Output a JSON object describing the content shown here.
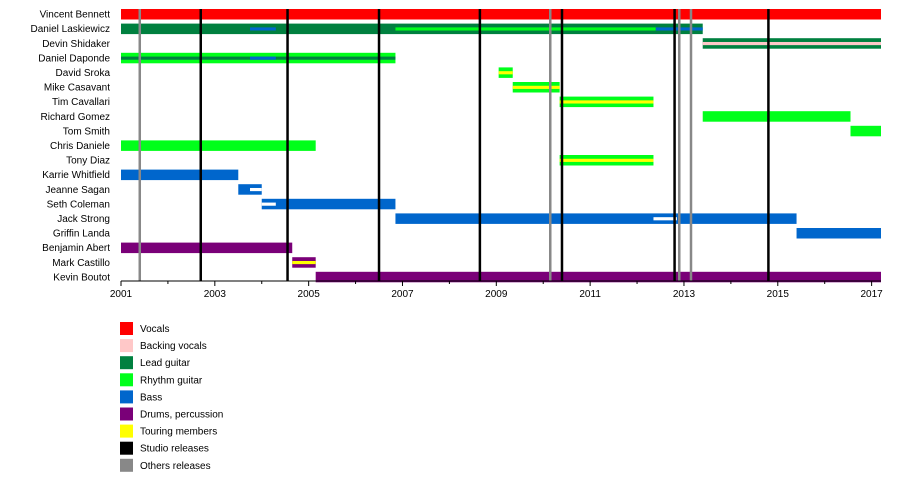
{
  "chart_data": {
    "type": "timeline",
    "title": "",
    "xlabel": "",
    "ylabel": "",
    "xlim": [
      2001,
      2017.2
    ],
    "x_ticks": [
      "2001",
      "2003",
      "2005",
      "2007",
      "2009",
      "2011",
      "2013",
      "2015",
      "2017"
    ],
    "grid": false,
    "legend_position": "bottom-left",
    "colors": {
      "Vocals": "#ff0000",
      "Backing vocals": "#ffc8c8",
      "Lead guitar": "#00803f",
      "Rhythm guitar": "#00ff1a",
      "Bass": "#0066cc",
      "Drums, percussion": "#7a0078",
      "Touring members": "#ffff00",
      "Studio releases": "#000000",
      "Others releases": "#888888"
    },
    "legend": [
      "Vocals",
      "Backing vocals",
      "Lead guitar",
      "Rhythm guitar",
      "Bass",
      "Drums, percussion",
      "Touring members",
      "Studio releases",
      "Others releases"
    ],
    "members": [
      "Vincent Bennett",
      "Daniel Laskiewicz",
      "Devin Shidaker",
      "Daniel Daponde",
      "David Sroka",
      "Mike Casavant",
      "Tim Cavallari",
      "Richard Gomez",
      "Tom Smith",
      "Chris Daniele",
      "Tony Diaz",
      "Karrie Whitfield",
      "Jeanne Sagan",
      "Seth Coleman",
      "Jack Strong",
      "Griffin Landa",
      "Benjamin Abert",
      "Mark Castillo",
      "Kevin Boutot"
    ],
    "studio_releases": [
      2002.7,
      2004.55,
      2006.5,
      2008.65,
      2010.4,
      2012.8,
      2014.8
    ],
    "other_releases": [
      2001.4,
      2010.15,
      2012.9,
      2013.15
    ],
    "bars": [
      {
        "member": 0,
        "start": 2001.0,
        "end": 2017.2,
        "role": "Vocals"
      },
      {
        "member": 1,
        "start": 2001.0,
        "end": 2013.4,
        "role": "Lead guitar"
      },
      {
        "member": 1,
        "start": 2003.75,
        "end": 2004.3,
        "role": "Bass",
        "overlay": "center"
      },
      {
        "member": 1,
        "start": 2006.85,
        "end": 2012.4,
        "role": "Rhythm guitar",
        "overlay": "center"
      },
      {
        "member": 1,
        "start": 2012.4,
        "end": 2013.4,
        "role": "Bass",
        "overlay": "center"
      },
      {
        "member": 2,
        "start": 2013.4,
        "end": 2017.2,
        "role": "Lead guitar"
      },
      {
        "member": 2,
        "start": 2013.4,
        "end": 2017.2,
        "role": "Backing vocals",
        "overlay": "center"
      },
      {
        "member": 3,
        "start": 2001.0,
        "end": 2006.85,
        "role": "Rhythm guitar"
      },
      {
        "member": 3,
        "start": 2001.0,
        "end": 2006.85,
        "role": "Lead guitar",
        "overlay": "center"
      },
      {
        "member": 3,
        "start": 2003.75,
        "end": 2004.3,
        "role": "Bass",
        "overlay": "center"
      },
      {
        "member": 4,
        "start": 2009.05,
        "end": 2009.35,
        "role": "Rhythm guitar"
      },
      {
        "member": 4,
        "start": 2009.05,
        "end": 2009.35,
        "role": "Touring members",
        "overlay": "center"
      },
      {
        "member": 5,
        "start": 2009.35,
        "end": 2010.35,
        "role": "Rhythm guitar"
      },
      {
        "member": 5,
        "start": 2009.35,
        "end": 2010.35,
        "role": "Touring members",
        "overlay": "center"
      },
      {
        "member": 6,
        "start": 2010.35,
        "end": 2012.35,
        "role": "Rhythm guitar"
      },
      {
        "member": 6,
        "start": 2010.35,
        "end": 2012.35,
        "role": "Touring members",
        "overlay": "center"
      },
      {
        "member": 7,
        "start": 2013.4,
        "end": 2016.55,
        "role": "Rhythm guitar"
      },
      {
        "member": 8,
        "start": 2016.55,
        "end": 2017.2,
        "role": "Rhythm guitar"
      },
      {
        "member": 9,
        "start": 2001.0,
        "end": 2005.15,
        "role": "Rhythm guitar"
      },
      {
        "member": 10,
        "start": 2010.35,
        "end": 2012.35,
        "role": "Rhythm guitar"
      },
      {
        "member": 10,
        "start": 2010.35,
        "end": 2012.35,
        "role": "Touring members",
        "overlay": "center"
      },
      {
        "member": 11,
        "start": 2001.0,
        "end": 2003.5,
        "role": "Bass"
      },
      {
        "member": 12,
        "start": 2003.5,
        "end": 2004.0,
        "role": "Bass"
      },
      {
        "member": 12,
        "start": 2003.75,
        "end": 2004.0,
        "role": "Touring members",
        "overlay": "white"
      },
      {
        "member": 13,
        "start": 2004.0,
        "end": 2006.85,
        "role": "Bass"
      },
      {
        "member": 13,
        "start": 2004.0,
        "end": 2004.3,
        "role": "Touring members",
        "overlay": "white"
      },
      {
        "member": 14,
        "start": 2006.85,
        "end": 2015.4,
        "role": "Bass"
      },
      {
        "member": 14,
        "start": 2012.35,
        "end": 2012.85,
        "role": "Touring members",
        "overlay": "white"
      },
      {
        "member": 15,
        "start": 2015.4,
        "end": 2017.2,
        "role": "Bass"
      },
      {
        "member": 16,
        "start": 2001.0,
        "end": 2004.65,
        "role": "Drums, percussion"
      },
      {
        "member": 17,
        "start": 2004.65,
        "end": 2005.15,
        "role": "Drums, percussion"
      },
      {
        "member": 17,
        "start": 2004.65,
        "end": 2005.15,
        "role": "Touring members",
        "overlay": "center"
      },
      {
        "member": 18,
        "start": 2005.15,
        "end": 2017.2,
        "role": "Drums, percussion"
      }
    ]
  }
}
